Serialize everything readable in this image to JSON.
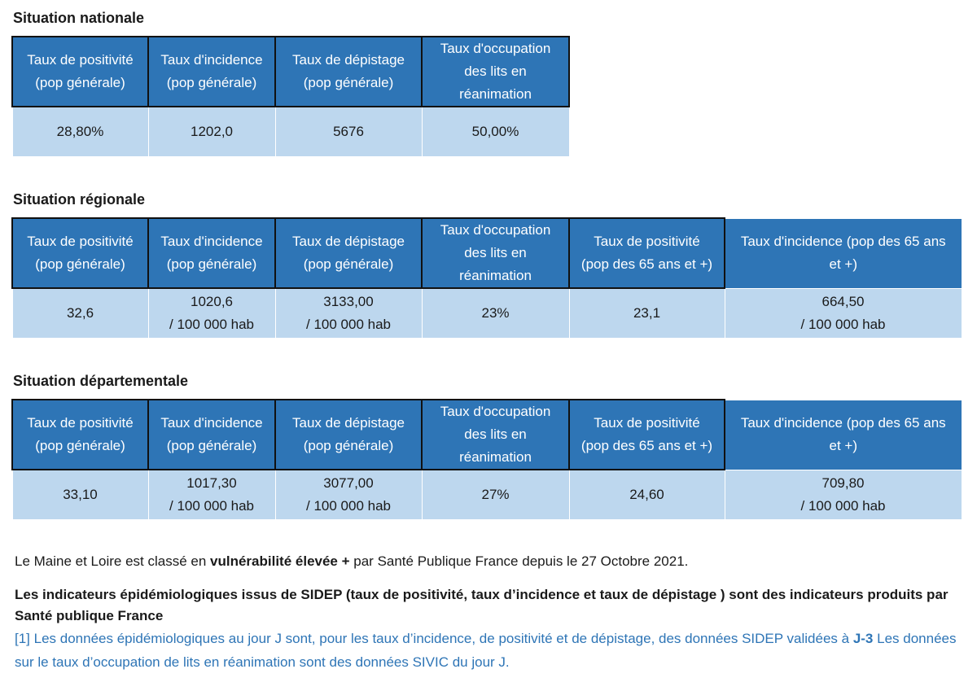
{
  "national": {
    "title": "Situation nationale",
    "headers": [
      {
        "l1": "Taux de positivité",
        "l2": "(pop générale)",
        "l3": ""
      },
      {
        "l1": "Taux d'incidence",
        "l2": "(pop générale)",
        "l3": ""
      },
      {
        "l1": "Taux de dépistage",
        "l2": "(pop générale)",
        "l3": ""
      },
      {
        "l1": "Taux d'occupation",
        "l2": "des lits en",
        "l3": "réanimation"
      }
    ],
    "values": [
      {
        "v1": "28,80%",
        "v2": ""
      },
      {
        "v1": "1202,0",
        "v2": ""
      },
      {
        "v1": "5676",
        "v2": ""
      },
      {
        "v1": "50,00%",
        "v2": ""
      }
    ]
  },
  "regional": {
    "title": "Situation régionale",
    "headers": [
      {
        "l1": "Taux de positivité",
        "l2": "(pop générale)",
        "l3": ""
      },
      {
        "l1": "Taux d'incidence",
        "l2": "(pop générale)",
        "l3": ""
      },
      {
        "l1": "Taux de dépistage",
        "l2": "(pop générale)",
        "l3": ""
      },
      {
        "l1": "Taux d'occupation",
        "l2": "des lits en",
        "l3": "réanimation"
      },
      {
        "l1": "Taux de positivité",
        "l2": "(pop des 65 ans et +)",
        "l3": ""
      },
      {
        "l1": "Taux d'incidence (pop des 65 ans",
        "l2": "et +)",
        "l3": ""
      }
    ],
    "values": [
      {
        "v1": "32,6",
        "v2": ""
      },
      {
        "v1": "1020,6",
        "v2": "/ 100 000 hab"
      },
      {
        "v1": "3133,00",
        "v2": "/ 100 000 hab"
      },
      {
        "v1": "23%",
        "v2": ""
      },
      {
        "v1": "23,1",
        "v2": ""
      },
      {
        "v1": "664,50",
        "v2": "/ 100 000 hab"
      }
    ]
  },
  "departmental": {
    "title": "Situation départementale",
    "headers": [
      {
        "l1": "Taux de positivité",
        "l2": "(pop générale)",
        "l3": ""
      },
      {
        "l1": "Taux d'incidence",
        "l2": "(pop générale)",
        "l3": ""
      },
      {
        "l1": "Taux de dépistage",
        "l2": "(pop générale)",
        "l3": ""
      },
      {
        "l1": "Taux d'occupation",
        "l2": "des lits en",
        "l3": "réanimation"
      },
      {
        "l1": "Taux de positivité",
        "l2": "(pop des 65 ans et +)",
        "l3": ""
      },
      {
        "l1": "Taux d'incidence (pop des 65 ans",
        "l2": "et +)",
        "l3": ""
      }
    ],
    "values": [
      {
        "v1": "33,10",
        "v2": ""
      },
      {
        "v1": "1017,30",
        "v2": "/ 100 000 hab"
      },
      {
        "v1": "3077,00",
        "v2": "/ 100 000 hab"
      },
      {
        "v1": "27%",
        "v2": ""
      },
      {
        "v1": "24,60",
        "v2": ""
      },
      {
        "v1": "709,80",
        "v2": "/ 100 000 hab"
      }
    ]
  },
  "footer": {
    "status_prefix": "Le Maine et Loire est classé en ",
    "status_bold": "vulnérabilité élevée +",
    "status_suffix": " par Santé Publique France depuis le 27 Octobre 2021.",
    "indicators": "Les indicateurs épidémiologiques issus de SIDEP (taux de positivité, taux d’incidence et taux de dépistage ) sont des indicateurs produits par Santé publique France",
    "note1_text": "[1] Les données épidémiologiques au jour J sont, pour les taux d’incidence, de positivité et de dépistage, des données SIDEP validées à ",
    "note1_bold": "J-3",
    "note2_text": " Les données sur le taux d’occupation de lits en réanimation sont des données SIVIC du jour J."
  },
  "colors": {
    "header_bg": "#2e75b6",
    "value_bg": "#bdd7ee",
    "note_text": "#2e75b6"
  }
}
